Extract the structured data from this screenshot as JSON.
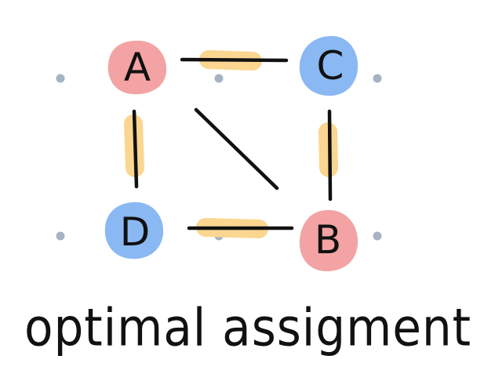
{
  "colors": {
    "red": "#f3a3a3",
    "blue": "#8ab8f3",
    "highlight": "#fbd690",
    "edge": "#111111",
    "dot": "#a5b3c4"
  },
  "nodes": [
    {
      "id": "A",
      "label": "A",
      "color": "red"
    },
    {
      "id": "C",
      "label": "C",
      "color": "blue"
    },
    {
      "id": "D",
      "label": "D",
      "color": "blue"
    },
    {
      "id": "B",
      "label": "B",
      "color": "red"
    }
  ],
  "edges": [
    {
      "from": "A",
      "to": "C",
      "highlighted": true
    },
    {
      "from": "A",
      "to": "D",
      "highlighted": true
    },
    {
      "from": "C",
      "to": "B",
      "highlighted": true
    },
    {
      "from": "D",
      "to": "B",
      "highlighted": true
    },
    {
      "from": "A",
      "to": "B",
      "highlighted": false
    }
  ],
  "caption": "optimal assigment"
}
